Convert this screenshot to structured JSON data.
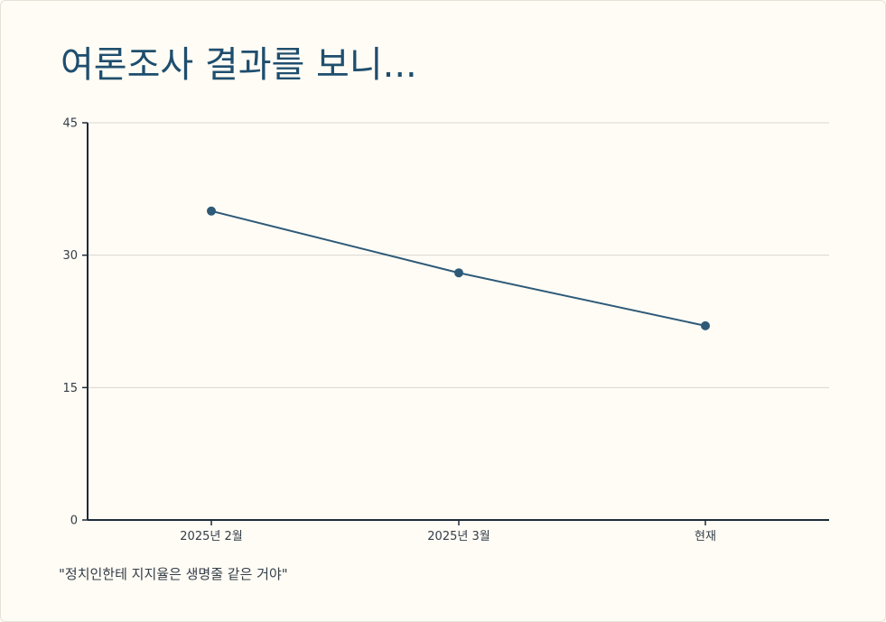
{
  "title": "여론조사 결과를 보니...",
  "caption": "\"정치인한테 지지율은 생명줄 같은 거야\"",
  "colors": {
    "background": "#fffcf5",
    "title": "#1f4e6e",
    "line": "#2e5a78",
    "axis": "#1d2b3a",
    "grid": "#d9d6cf"
  },
  "chart_data": {
    "type": "line",
    "categories": [
      "2025년 2월",
      "2025년 3월",
      "현재"
    ],
    "series": [
      {
        "values": [
          35,
          28,
          22
        ]
      }
    ],
    "ylim": [
      0,
      45
    ],
    "yticks": [
      0,
      15,
      30,
      45
    ],
    "grid": true,
    "legend": "none"
  }
}
